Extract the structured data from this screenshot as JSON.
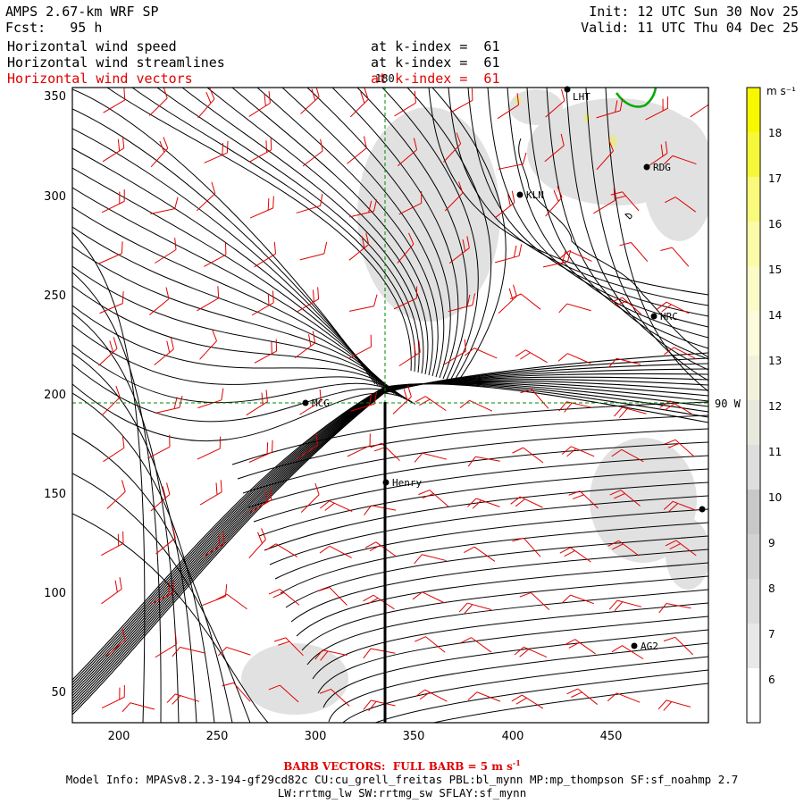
{
  "header": {
    "model_title": "AMPS 2.67-km WRF SP",
    "forecast": "Fcst:   95 h",
    "init": "Init: 12 UTC Sun 30 Nov 25",
    "valid": "Valid: 11 UTC Thu 04 Dec 25",
    "fields": [
      {
        "name": "Horizontal wind speed",
        "level": "at k-index =  61"
      },
      {
        "name": "Horizontal wind streamlines",
        "level": "at k-index =  61"
      },
      {
        "name": "Horizontal wind vectors",
        "level": "at k-index =  61"
      }
    ]
  },
  "map": {
    "x_ticks": [
      "200",
      "250",
      "300",
      "350",
      "400",
      "450"
    ],
    "y_ticks": [
      "350",
      "300",
      "250",
      "200",
      "150",
      "100",
      "50"
    ],
    "meridian_label": "180",
    "parallel_label": "90 W",
    "stations": [
      {
        "id": "LHT",
        "label": "LHT"
      },
      {
        "id": "RDG",
        "label": "RDG"
      },
      {
        "id": "KLN",
        "label": "KLN"
      },
      {
        "id": "HRC",
        "label": "HRC"
      },
      {
        "id": "MCG",
        "label": "MCG"
      },
      {
        "id": "Henry",
        "label": "Henry"
      },
      {
        "id": "AG2",
        "label": "AG2"
      }
    ]
  },
  "colorbar": {
    "unit": "m s⁻¹",
    "ticks": [
      "18",
      "17",
      "16",
      "15",
      "14",
      "13",
      "12",
      "11",
      "10",
      "9",
      "8",
      "7",
      "6"
    ]
  },
  "colors": {
    "streamline": "#000000",
    "barb": "#e00000",
    "coast": "#00aa00",
    "shading": "#d8d8d8",
    "gridline": "#008800"
  },
  "footer": {
    "barb_note": "BARB VECTORS:  FULL BARB = 5 m s",
    "barb_note_exp": "-1",
    "model_info_1": "Model Info: MPASv8.2.3-194-gf29cd82c CU:cu_grell_freitas PBL:bl_mynn MP:mp_thompson SF:sf_noahmp 2.7",
    "model_info_2": "LW:rrtmg_lw SW:rrtmg_sw SFLAY:sf_mynn"
  }
}
